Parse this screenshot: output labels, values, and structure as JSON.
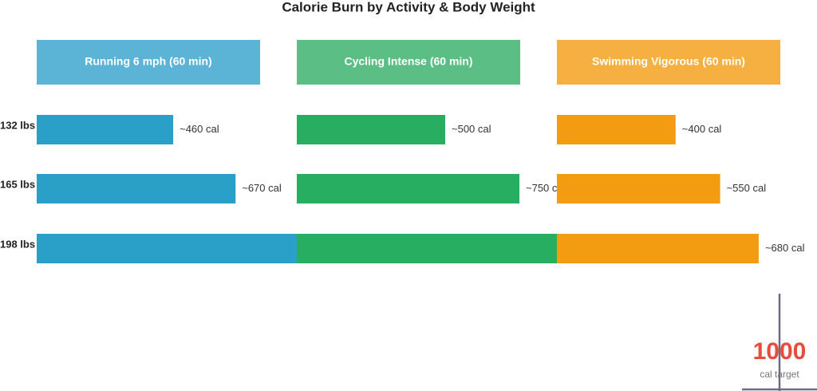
{
  "chart_data": {
    "type": "bar",
    "title": "Calorie Burn by Activity & Body Weight",
    "categories": [
      "132 lbs",
      "165 lbs",
      "198 lbs"
    ],
    "series": [
      {
        "name": "Running 6 mph (60 min)",
        "color": "#2a9fc8",
        "header_color": "#5bb4d6",
        "values": [
          460,
          670,
          880
        ],
        "value_labels": [
          "~460 cal",
          "~670 cal",
          null
        ]
      },
      {
        "name": "Cycling Intense (60 min)",
        "color": "#27ae60",
        "header_color": "#5bbf85",
        "values": [
          500,
          750,
          900
        ],
        "value_labels": [
          "~500 cal",
          "~750 cal",
          null
        ]
      },
      {
        "name": "Swimming Vigorous (60 min)",
        "color": "#f39c12",
        "header_color": "#f5b041",
        "values": [
          400,
          550,
          680
        ],
        "value_labels": [
          "~400 cal",
          "~550 cal",
          "~680 cal"
        ]
      }
    ],
    "target": 1000,
    "target_label": "cal target",
    "target_color": "#e74c3c"
  }
}
